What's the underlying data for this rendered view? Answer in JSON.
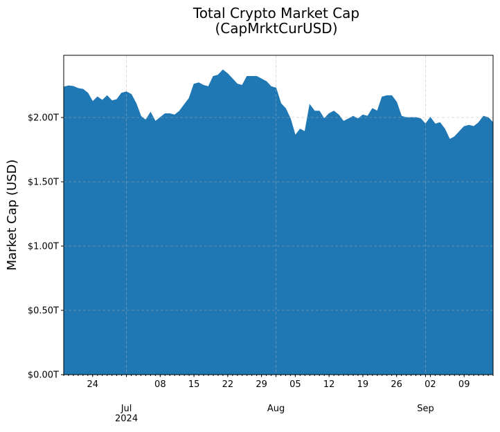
{
  "chart_data": {
    "type": "area",
    "title": "Total Crypto Market Cap\n(CapMrktCurUSD)",
    "ylabel": "Market Cap (USD)",
    "color": "#1f77b4",
    "grid": true,
    "x": [
      "2024-06-18",
      "2024-06-19",
      "2024-06-20",
      "2024-06-21",
      "2024-06-22",
      "2024-06-23",
      "2024-06-24",
      "2024-06-25",
      "2024-06-26",
      "2024-06-27",
      "2024-06-28",
      "2024-06-29",
      "2024-06-30",
      "2024-07-01",
      "2024-07-02",
      "2024-07-03",
      "2024-07-04",
      "2024-07-05",
      "2024-07-06",
      "2024-07-07",
      "2024-07-08",
      "2024-07-09",
      "2024-07-10",
      "2024-07-11",
      "2024-07-12",
      "2024-07-13",
      "2024-07-14",
      "2024-07-15",
      "2024-07-16",
      "2024-07-17",
      "2024-07-18",
      "2024-07-19",
      "2024-07-20",
      "2024-07-21",
      "2024-07-22",
      "2024-07-23",
      "2024-07-24",
      "2024-07-25",
      "2024-07-26",
      "2024-07-27",
      "2024-07-28",
      "2024-07-29",
      "2024-07-30",
      "2024-07-31",
      "2024-08-01",
      "2024-08-02",
      "2024-08-03",
      "2024-08-04",
      "2024-08-05",
      "2024-08-06",
      "2024-08-07",
      "2024-08-08",
      "2024-08-09",
      "2024-08-10",
      "2024-08-11",
      "2024-08-12",
      "2024-08-13",
      "2024-08-14",
      "2024-08-15",
      "2024-08-16",
      "2024-08-17",
      "2024-08-18",
      "2024-08-19",
      "2024-08-20",
      "2024-08-21",
      "2024-08-22",
      "2024-08-23",
      "2024-08-24",
      "2024-08-25",
      "2024-08-26",
      "2024-08-27",
      "2024-08-28",
      "2024-08-29",
      "2024-08-30",
      "2024-08-31",
      "2024-09-01",
      "2024-09-02",
      "2024-09-03",
      "2024-09-04",
      "2024-09-05",
      "2024-09-06",
      "2024-09-07",
      "2024-09-08",
      "2024-09-09",
      "2024-09-10",
      "2024-09-11",
      "2024-09-12",
      "2024-09-13",
      "2024-09-14",
      "2024-09-15"
    ],
    "values": [
      2.237,
      2.247,
      2.242,
      2.226,
      2.22,
      2.19,
      2.124,
      2.16,
      2.134,
      2.17,
      2.13,
      2.14,
      2.19,
      2.2,
      2.18,
      2.11,
      2.01,
      1.98,
      2.04,
      1.97,
      2.0,
      2.03,
      2.03,
      2.02,
      2.05,
      2.1,
      2.15,
      2.26,
      2.27,
      2.25,
      2.24,
      2.32,
      2.33,
      2.37,
      2.34,
      2.3,
      2.26,
      2.25,
      2.32,
      2.32,
      2.32,
      2.3,
      2.28,
      2.24,
      2.23,
      2.11,
      2.07,
      1.99,
      1.86,
      1.91,
      1.89,
      2.1,
      2.05,
      2.05,
      1.99,
      2.03,
      2.05,
      2.02,
      1.97,
      1.99,
      2.01,
      1.99,
      2.02,
      2.01,
      2.07,
      2.05,
      2.16,
      2.17,
      2.17,
      2.12,
      2.01,
      2.0,
      2.0,
      2.0,
      1.99,
      1.95,
      2.0,
      1.95,
      1.96,
      1.91,
      1.83,
      1.85,
      1.89,
      1.93,
      1.94,
      1.93,
      1.96,
      2.01,
      2.0,
      1.96
    ],
    "xlim": [
      "2024-06-18",
      "2024-09-15"
    ],
    "xticks": [
      {
        "value": "2024-06-24",
        "label": "24"
      },
      {
        "value": "2024-07-01",
        "label": "Jul\n2024"
      },
      {
        "value": "2024-07-08",
        "label": "08"
      },
      {
        "value": "2024-07-15",
        "label": "15"
      },
      {
        "value": "2024-07-22",
        "label": "22"
      },
      {
        "value": "2024-07-29",
        "label": "29"
      },
      {
        "value": "2024-08-01",
        "label": "Aug"
      },
      {
        "value": "2024-08-05",
        "label": "05"
      },
      {
        "value": "2024-08-12",
        "label": "12"
      },
      {
        "value": "2024-08-19",
        "label": "19"
      },
      {
        "value": "2024-08-26",
        "label": "26"
      },
      {
        "value": "2024-09-01",
        "label": "Sep"
      },
      {
        "value": "2024-09-02",
        "label": "02"
      },
      {
        "value": "2024-09-09",
        "label": "09"
      }
    ],
    "ylim": [
      0,
      2.484
    ],
    "yticks": [
      {
        "value": 0,
        "label": "$0.00T"
      },
      {
        "value": 0.5,
        "label": "$0.50T"
      },
      {
        "value": 1,
        "label": "$1.00T"
      },
      {
        "value": 1.5,
        "label": "$1.50T"
      },
      {
        "value": 2,
        "label": "$2.00T"
      }
    ]
  }
}
